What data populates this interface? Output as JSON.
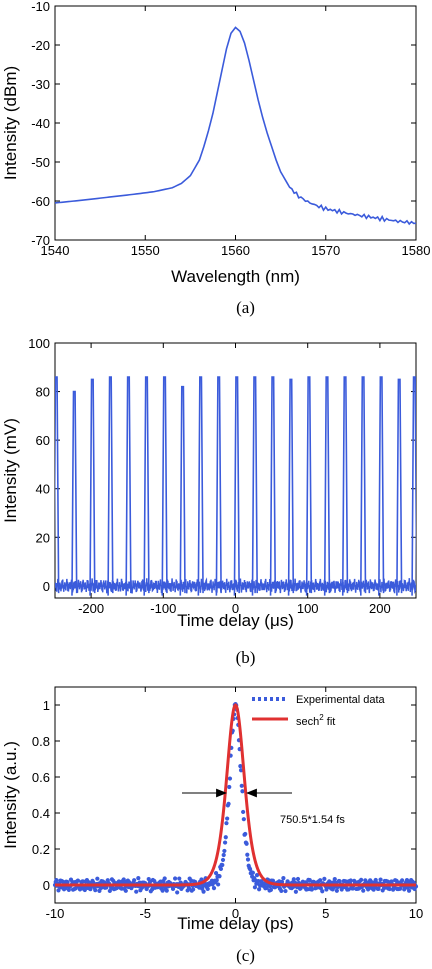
{
  "chart_data": [
    {
      "id": "a",
      "type": "line",
      "caption": "(a)",
      "xlabel": "Wavelength (nm)",
      "ylabel": "Intensity (dBm)",
      "xlim": [
        1540,
        1580
      ],
      "ylim": [
        -70,
        -10
      ],
      "xticks": [
        1540,
        1550,
        1560,
        1570,
        1580
      ],
      "yticks": [
        -70,
        -60,
        -50,
        -40,
        -30,
        -20,
        -10
      ],
      "color": "#3b5bdb",
      "series": [
        {
          "x": [
            1540,
            1543,
            1546,
            1549,
            1551,
            1553,
            1554,
            1555,
            1556,
            1556.5,
            1557,
            1557.5,
            1558,
            1558.5,
            1559,
            1559.5,
            1560,
            1560.5,
            1561,
            1561.5,
            1562,
            1562.5,
            1563,
            1563.5,
            1564,
            1564.5,
            1565,
            1566,
            1567,
            1568,
            1569,
            1570,
            1572,
            1574,
            1576,
            1578,
            1580
          ],
          "y": [
            -60.5,
            -59.8,
            -59,
            -58.2,
            -57.6,
            -56.6,
            -55.5,
            -53.5,
            -49.5,
            -46,
            -42,
            -37.5,
            -32,
            -26.5,
            -21,
            -17,
            -15.5,
            -16.5,
            -19.5,
            -24,
            -29,
            -34,
            -38.5,
            -42.5,
            -46,
            -49.5,
            -52.5,
            -56.5,
            -58.8,
            -60.2,
            -61.2,
            -62,
            -63,
            -63.8,
            -64.5,
            -65.2,
            -65.7
          ]
        }
      ]
    },
    {
      "id": "b",
      "type": "line",
      "caption": "(b)",
      "xlabel": "Time delay (μs)",
      "ylabel": "Intensity (mV)",
      "xlim": [
        -250,
        250
      ],
      "ylim": [
        -5,
        100
      ],
      "xticks": [
        -200,
        -100,
        0,
        100,
        200
      ],
      "yticks": [
        0,
        20,
        40,
        60,
        80,
        100
      ],
      "color": "#3b5bdb",
      "pulse_times": [
        -248,
        -223,
        -198,
        -173,
        -148,
        -123,
        -98,
        -73,
        -48,
        -23,
        2,
        27,
        52,
        77,
        102,
        127,
        152,
        177,
        202,
        227,
        248
      ],
      "pulse_peaks": [
        86,
        80,
        85,
        86,
        86,
        86,
        86,
        82,
        86,
        86,
        86,
        86,
        86,
        85,
        86,
        86,
        86,
        86,
        86,
        85,
        86
      ]
    },
    {
      "id": "c",
      "type": "scatter",
      "caption": "(c)",
      "xlabel": "Time delay (ps)",
      "ylabel": "Intensity (a.u.)",
      "xlim": [
        -10,
        10
      ],
      "ylim": [
        -0.1,
        1.1
      ],
      "xticks": [
        -10,
        -5,
        0,
        5,
        10
      ],
      "yticks": [
        0,
        0.2,
        0.4,
        0.6,
        0.8,
        1
      ],
      "legend_position": "top-right",
      "annotation": "750.5*1.54 fs",
      "series": [
        {
          "name": "Experimental data",
          "color": "#3b5bdb",
          "style": "dotted",
          "fwhm_ps": 0.75,
          "peak": 1.0
        },
        {
          "name": "sech",
          "name_sup": "2",
          "name_suffix": " fit",
          "color": "#e03131",
          "style": "solid",
          "fwhm_ps": 1.155,
          "peak": 1.0
        }
      ]
    }
  ]
}
